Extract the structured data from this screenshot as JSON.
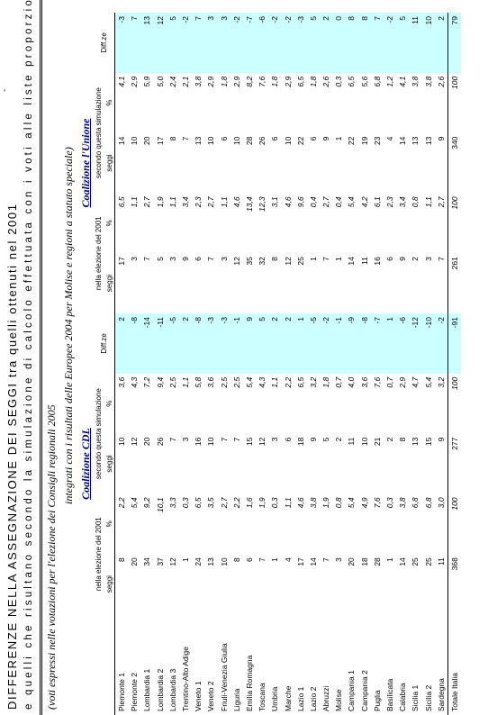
{
  "header": {
    "dash": "-",
    "title": [
      "DIFFERENZE NELLA ASSEGNAZIONE DEI SEGGI tra quelli ottenuti nel 2001",
      "e quelli che risultano secondo la simulazione di calcolo effettuata con i voti alle liste proporzionali",
      "(voti espressi nelle votazioni per l'elezione dei Consigli regionali 2005",
      "integrati con i risultati delle Europee 2004 per Molise e regioni a statuto speciale)"
    ],
    "coalitions": [
      "Coalizione CDL",
      "Coalizione l'Unione"
    ],
    "subheaders": [
      "nella elezione del 2001",
      "secondo questa simulazione",
      "Diff.ze"
    ],
    "units": [
      "seggi",
      "%"
    ]
  },
  "table": {
    "rows": [
      [
        "Piemonte 1",
        8,
        "2,2",
        10,
        "3,6",
        2,
        17,
        "6,5",
        14,
        "4,1",
        -3
      ],
      [
        "Piemonte 2",
        20,
        "5,4",
        12,
        "4,3",
        -8,
        3,
        "1,1",
        10,
        "2,9",
        7
      ],
      [
        "Lombardia 1",
        34,
        "9,2",
        20,
        "7,2",
        -14,
        7,
        "2,7",
        20,
        "5,9",
        13
      ],
      [
        "Lombardia 2",
        37,
        "10,1",
        26,
        "9,4",
        -11,
        5,
        "1,9",
        17,
        "5,0",
        12
      ],
      [
        "Lombardia 3",
        12,
        "3,3",
        7,
        "2,5",
        -5,
        3,
        "1,1",
        8,
        "2,4",
        5
      ],
      [
        "Trentino-Alto Adige",
        1,
        "0,3",
        3,
        "1,1",
        2,
        9,
        "3,4",
        7,
        "2,1",
        -2
      ],
      [
        "Veneto 1",
        24,
        "6,5",
        16,
        "5,8",
        -8,
        6,
        "2,3",
        13,
        "3,8",
        7
      ],
      [
        "Veneto 2",
        13,
        "3,5",
        10,
        "3,6",
        -3,
        7,
        "2,7",
        10,
        "2,9",
        3
      ],
      [
        "Friuli-Venezia Giulia",
        10,
        "2,7",
        7,
        "2,5",
        -3,
        3,
        "1,1",
        6,
        "1,8",
        3
      ],
      [
        "Liguria",
        8,
        "2,2",
        7,
        "2,5",
        -1,
        12,
        "4,6",
        10,
        "2,9",
        -2
      ],
      [
        "Emilia Romagna",
        6,
        "1,6",
        15,
        "5,4",
        9,
        35,
        "13,4",
        28,
        "8,2",
        -7
      ],
      [
        "Toscana",
        7,
        "1,9",
        12,
        "4,3",
        5,
        32,
        "12,3",
        26,
        "7,6",
        -6
      ],
      [
        "Umbria",
        1,
        "0,3",
        3,
        "1,1",
        2,
        8,
        "3,1",
        6,
        "1,8",
        -2
      ],
      [
        "Marche",
        4,
        "1,1",
        6,
        "2,2",
        2,
        12,
        "4,6",
        10,
        "2,9",
        -2
      ],
      [
        "Lazio 1",
        17,
        "4,6",
        18,
        "6,5",
        1,
        25,
        "9,6",
        22,
        "6,5",
        -3
      ],
      [
        "Lazio 2",
        14,
        "3,8",
        9,
        "3,2",
        -5,
        1,
        "0,4",
        6,
        "1,8",
        5
      ],
      [
        "Abruzzi",
        7,
        "1,9",
        5,
        "1,8",
        -2,
        7,
        "2,7",
        9,
        "2,6",
        2
      ],
      [
        "Molise",
        3,
        "0,8",
        2,
        "0,7",
        -1,
        1,
        "0,4",
        1,
        "0,3",
        0
      ],
      [
        "Campania 1",
        20,
        "5,4",
        11,
        "4,0",
        -9,
        14,
        "5,4",
        22,
        "6,5",
        8
      ],
      [
        "Campania 2",
        18,
        "4,9",
        10,
        "3,6",
        -8,
        11,
        "4,2",
        19,
        "5,6",
        8
      ],
      [
        "Puglia",
        28,
        "7,6",
        21,
        "7,6",
        -7,
        16,
        "6,1",
        23,
        "6,8",
        7
      ],
      [
        "Basilicata",
        1,
        "0,3",
        2,
        "0,7",
        1,
        6,
        "2,3",
        4,
        "1,2",
        -2
      ],
      [
        "Calabria",
        14,
        "3,8",
        8,
        "2,9",
        -6,
        9,
        "3,4",
        14,
        "4,1",
        5
      ],
      [
        "Sicilia 1",
        25,
        "6,8",
        13,
        "4,7",
        -12,
        2,
        "0,8",
        13,
        "3,8",
        11
      ],
      [
        "Sicilia 2",
        25,
        "6,8",
        15,
        "5,4",
        -10,
        3,
        "1,1",
        13,
        "3,8",
        10
      ],
      [
        "Sardegna",
        11,
        "3,0",
        9,
        "3,2",
        -2,
        7,
        "2,7",
        9,
        "2,6",
        2
      ],
      [
        "Totale Italia",
        368,
        100,
        277,
        100,
        -91,
        261,
        100,
        340,
        100,
        79
      ]
    ]
  }
}
